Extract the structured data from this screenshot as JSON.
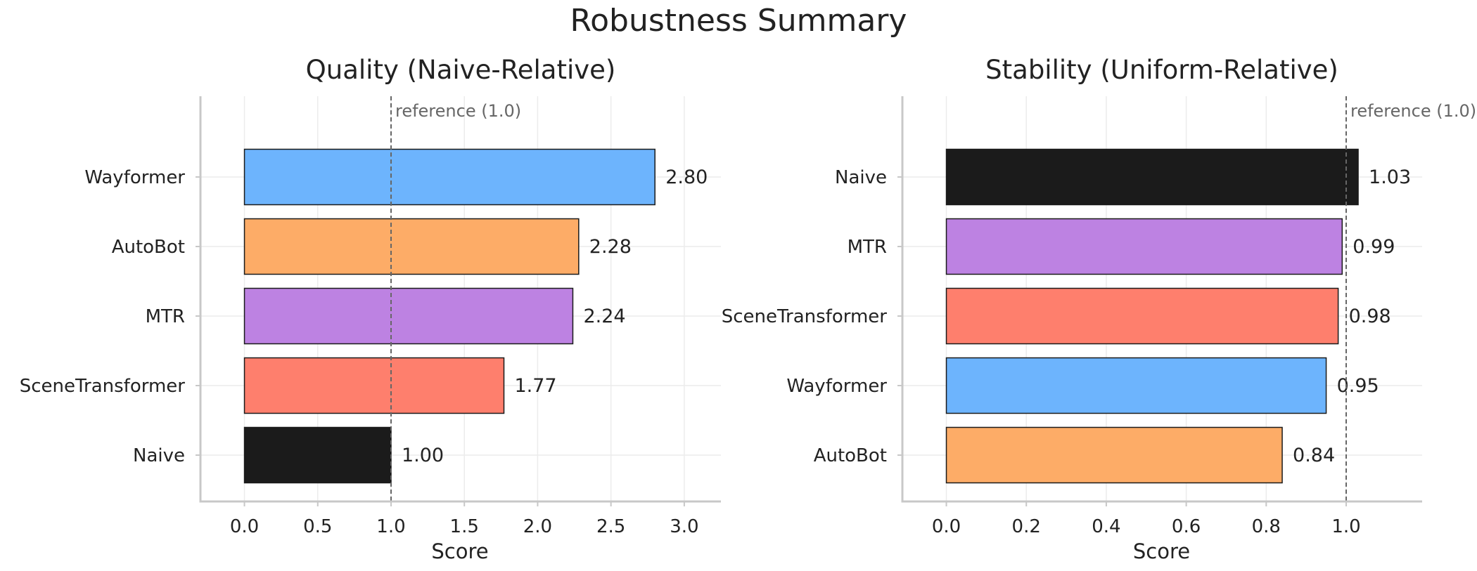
{
  "title": "Robustness Summary",
  "chart_data": [
    {
      "type": "bar",
      "orientation": "horizontal",
      "title": "Quality (Naive-Relative)",
      "xlabel": "Score",
      "ylabel": "",
      "xlim": [
        -0.3,
        3.25
      ],
      "xticks": [
        0.0,
        0.5,
        1.0,
        1.5,
        2.0,
        2.5,
        3.0
      ],
      "xtick_labels": [
        "0.0",
        "0.5",
        "1.0",
        "1.5",
        "2.0",
        "2.5",
        "3.0"
      ],
      "categories": [
        "Wayformer",
        "AutoBot",
        "MTR",
        "SceneTransformer",
        "Naive"
      ],
      "values": [
        2.8,
        2.28,
        2.24,
        1.77,
        1.0
      ],
      "value_labels": [
        "2.80",
        "2.28",
        "2.24",
        "1.77",
        "1.00"
      ],
      "colors": [
        "#6db4fd",
        "#fdac67",
        "#bd82e2",
        "#fe7f6d",
        "#1b1b1b"
      ],
      "reference": {
        "value": 1.0,
        "label": "reference (1.0)"
      },
      "grid": true,
      "legend": "none"
    },
    {
      "type": "bar",
      "orientation": "horizontal",
      "title": "Stability (Uniform-Relative)",
      "xlabel": "Score",
      "ylabel": "",
      "xlim": [
        -0.11,
        1.19
      ],
      "xticks": [
        0.0,
        0.2,
        0.4,
        0.6,
        0.8,
        1.0
      ],
      "xtick_labels": [
        "0.0",
        "0.2",
        "0.4",
        "0.6",
        "0.8",
        "1.0"
      ],
      "categories": [
        "Naive",
        "MTR",
        "SceneTransformer",
        "Wayformer",
        "AutoBot"
      ],
      "values": [
        1.03,
        0.99,
        0.98,
        0.95,
        0.84
      ],
      "value_labels": [
        "1.03",
        "0.99",
        "0.98",
        "0.95",
        "0.84"
      ],
      "colors": [
        "#1b1b1b",
        "#bd82e2",
        "#fe7f6d",
        "#6db4fd",
        "#fdac67"
      ],
      "reference": {
        "value": 1.0,
        "label": "reference (1.0)"
      },
      "grid": true,
      "legend": "none"
    }
  ]
}
